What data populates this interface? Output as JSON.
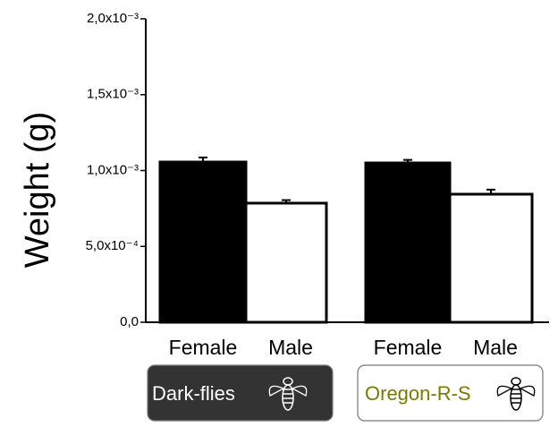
{
  "chart_data": {
    "type": "bar",
    "y_label": "Weight (g)",
    "categories": [
      "Female",
      "Male",
      "Female",
      "Male"
    ],
    "values": [
      0.001056,
      0.000785,
      0.00105,
      0.000844
    ],
    "errors": [
      3e-05,
      2e-05,
      2e-05,
      3e-05
    ],
    "colors": [
      "#000000",
      "#ffffff",
      "#000000",
      "#ffffff"
    ],
    "groups": [
      {
        "label": "Dark-flies"
      },
      {
        "label": "Oregon-R-S"
      }
    ],
    "ylim": [
      0,
      0.002
    ],
    "yticks": [
      {
        "value": 0,
        "label": "0,0"
      },
      {
        "value": 0.0005,
        "label": "5,0x10⁻⁴"
      },
      {
        "value": 0.001,
        "label": "1,0x10⁻³"
      },
      {
        "value": 0.0015,
        "label": "1,5x10⁻³"
      },
      {
        "value": 0.002,
        "label": "2,0x10⁻³"
      }
    ]
  }
}
